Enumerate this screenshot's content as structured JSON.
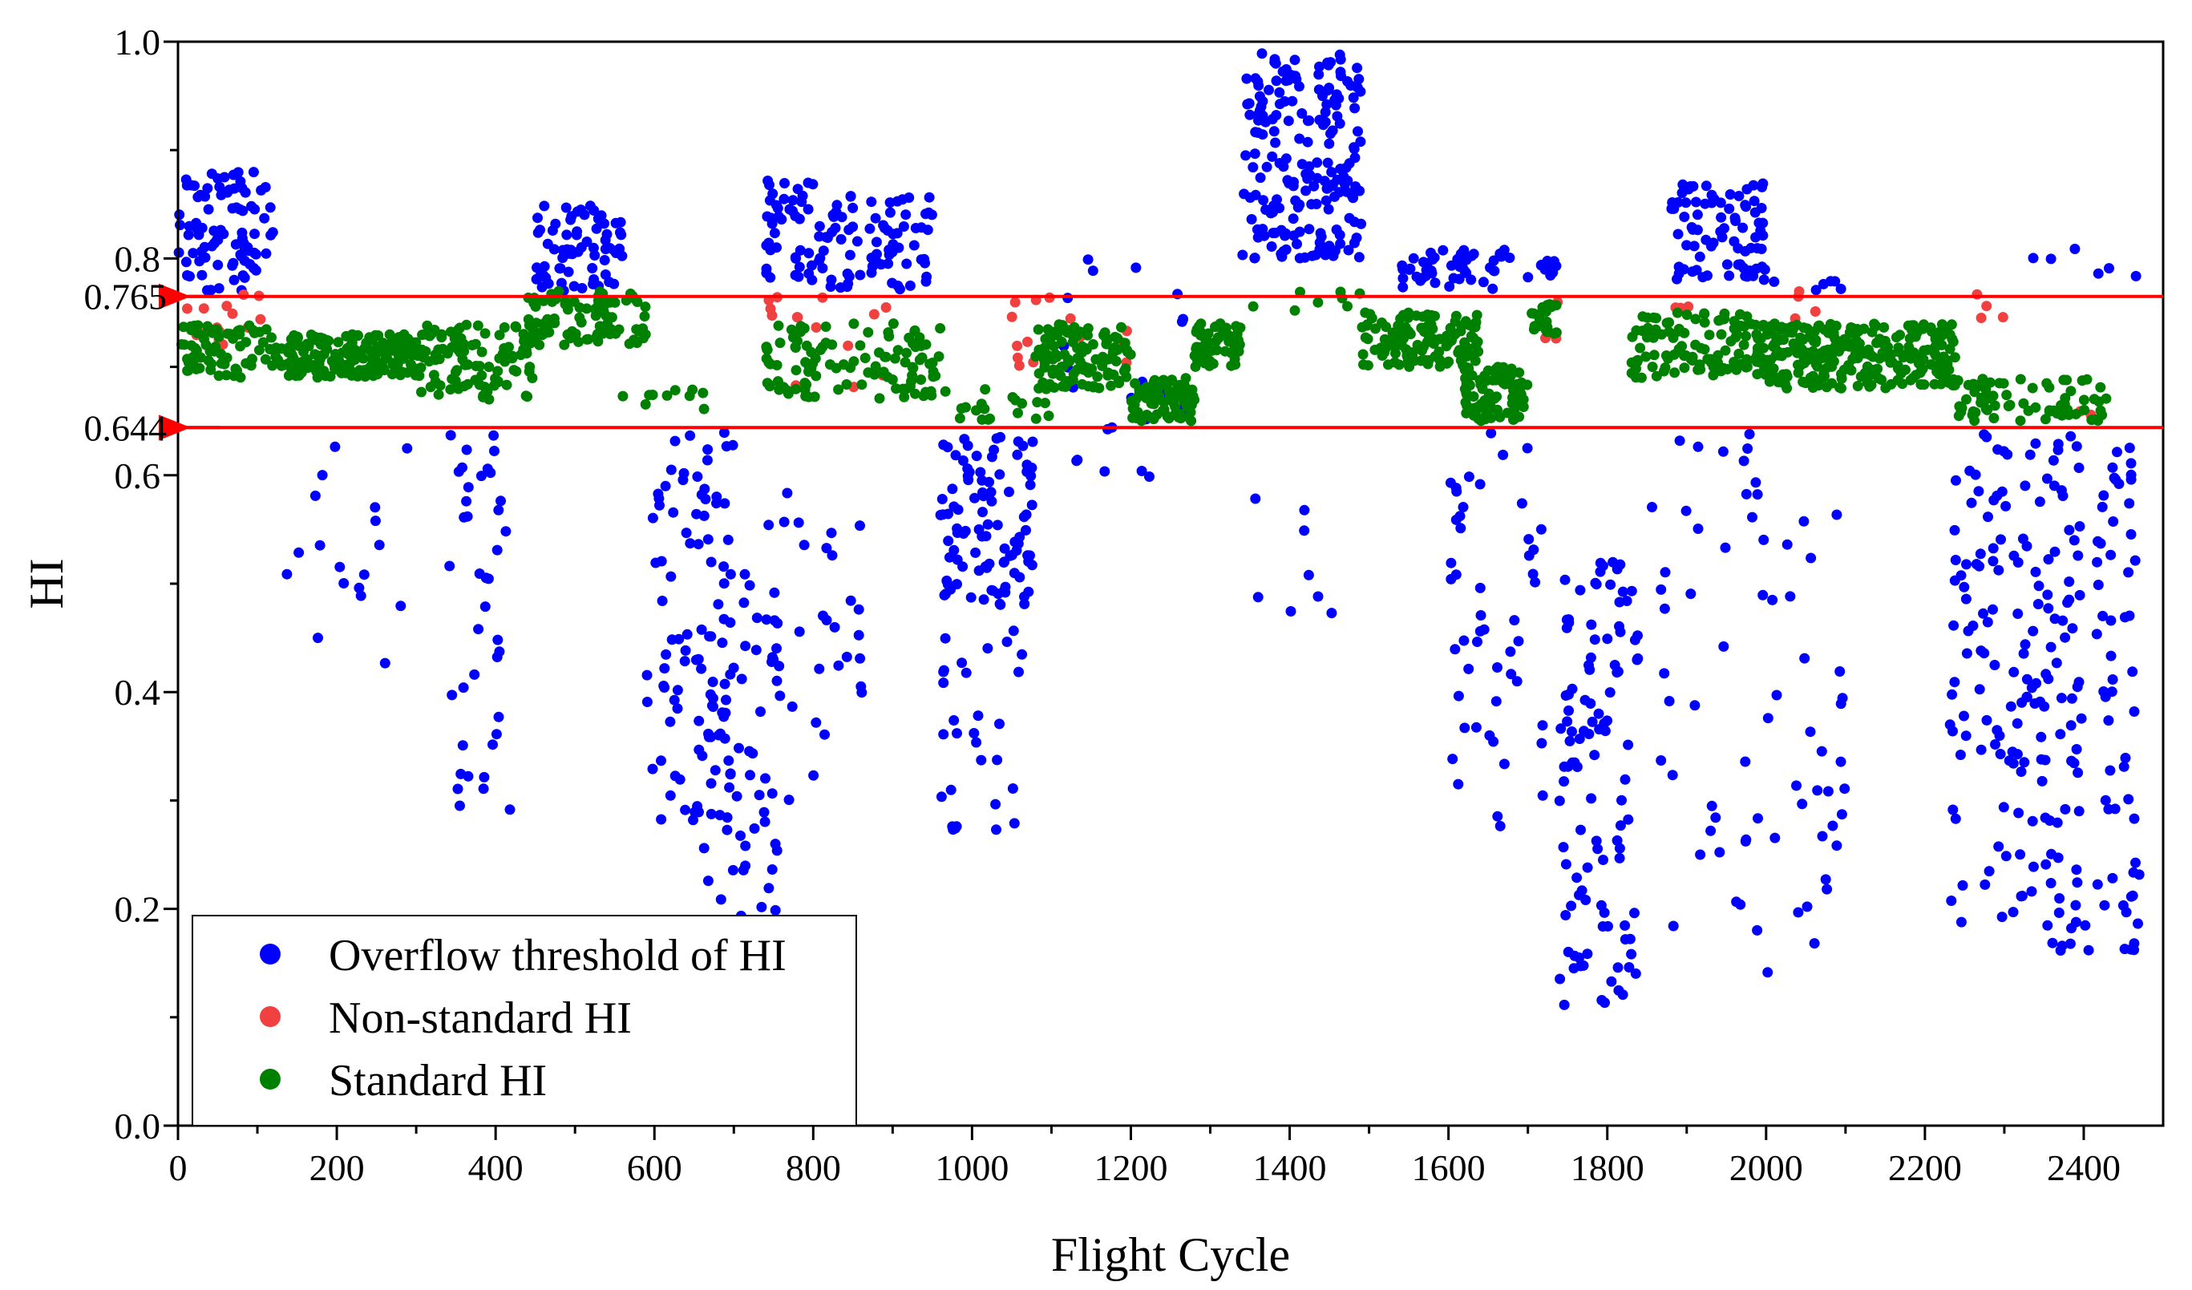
{
  "chart_data": {
    "type": "scatter",
    "title": "",
    "xlabel": "Flight Cycle",
    "ylabel": "HI",
    "xlim": [
      0,
      2500
    ],
    "ylim": [
      0,
      1.0
    ],
    "x_ticks": [
      "0",
      "200",
      "400",
      "600",
      "800",
      "1000",
      "1200",
      "1400",
      "1600",
      "1800",
      "2000",
      "2200",
      "2400"
    ],
    "y_ticks": [
      "0.0",
      "0.2",
      "0.4",
      "0.6",
      "0.8",
      "1.0"
    ],
    "threshold_labels": [
      "0.765",
      "0.644"
    ],
    "thresholds": [
      0.765,
      0.644
    ],
    "threshold_color": "#ff0000",
    "legend_position": "bottom-left",
    "series": [
      {
        "name": "Overflow threshold of HI",
        "color": "#0000ff",
        "clusters": [
          {
            "x0": 0,
            "x1": 120,
            "y0": 0.77,
            "y1": 0.88,
            "n": 90
          },
          {
            "x0": 130,
            "x1": 300,
            "y0": 0.42,
            "y1": 0.64,
            "n": 18
          },
          {
            "x0": 340,
            "x1": 420,
            "y0": 0.28,
            "y1": 0.64,
            "n": 40
          },
          {
            "x0": 450,
            "x1": 560,
            "y0": 0.77,
            "y1": 0.85,
            "n": 70
          },
          {
            "x0": 590,
            "x1": 700,
            "y0": 0.28,
            "y1": 0.64,
            "n": 90
          },
          {
            "x0": 660,
            "x1": 760,
            "y0": 0.18,
            "y1": 0.52,
            "n": 60
          },
          {
            "x0": 740,
            "x1": 820,
            "y0": 0.78,
            "y1": 0.88,
            "n": 50
          },
          {
            "x0": 820,
            "x1": 950,
            "y0": 0.77,
            "y1": 0.86,
            "n": 70
          },
          {
            "x0": 740,
            "x1": 870,
            "y0": 0.3,
            "y1": 0.6,
            "n": 30
          },
          {
            "x0": 960,
            "x1": 1080,
            "y0": 0.48,
            "y1": 0.64,
            "n": 100
          },
          {
            "x0": 960,
            "x1": 1070,
            "y0": 0.27,
            "y1": 0.46,
            "n": 30
          },
          {
            "x0": 1100,
            "x1": 1270,
            "y0": 0.58,
            "y1": 0.8,
            "n": 25
          },
          {
            "x0": 1340,
            "x1": 1490,
            "y0": 0.8,
            "y1": 0.99,
            "n": 200
          },
          {
            "x0": 1350,
            "x1": 1490,
            "y0": 0.47,
            "y1": 0.58,
            "n": 8
          },
          {
            "x0": 1540,
            "x1": 1680,
            "y0": 0.77,
            "y1": 0.81,
            "n": 50
          },
          {
            "x0": 1600,
            "x1": 1720,
            "y0": 0.27,
            "y1": 0.64,
            "n": 50
          },
          {
            "x0": 1700,
            "x1": 1740,
            "y0": 0.78,
            "y1": 0.8,
            "n": 10
          },
          {
            "x0": 1740,
            "x1": 1840,
            "y0": 0.11,
            "y1": 0.52,
            "n": 110
          },
          {
            "x0": 1880,
            "x1": 2000,
            "y0": 0.78,
            "y1": 0.87,
            "n": 80
          },
          {
            "x0": 1850,
            "x1": 2100,
            "y0": 0.14,
            "y1": 0.64,
            "n": 70
          },
          {
            "x0": 2000,
            "x1": 2100,
            "y0": 0.77,
            "y1": 0.78,
            "n": 6
          },
          {
            "x0": 2230,
            "x1": 2470,
            "y0": 0.16,
            "y1": 0.64,
            "n": 230
          },
          {
            "x0": 2270,
            "x1": 2470,
            "y0": 0.77,
            "y1": 0.81,
            "n": 6
          }
        ]
      },
      {
        "name": "Non-standard HI",
        "color": "#f04040",
        "clusters": [
          {
            "x0": 0,
            "x1": 110,
            "y0": 0.72,
            "y1": 0.77,
            "n": 14
          },
          {
            "x0": 740,
            "x1": 900,
            "y0": 0.67,
            "y1": 0.77,
            "n": 14
          },
          {
            "x0": 1050,
            "x1": 1210,
            "y0": 0.7,
            "y1": 0.77,
            "n": 14
          },
          {
            "x0": 1720,
            "x1": 1740,
            "y0": 0.72,
            "y1": 0.76,
            "n": 3
          },
          {
            "x0": 1880,
            "x1": 1910,
            "y0": 0.75,
            "y1": 0.77,
            "n": 3
          },
          {
            "x0": 2030,
            "x1": 2070,
            "y0": 0.74,
            "y1": 0.77,
            "n": 4
          },
          {
            "x0": 2230,
            "x1": 2300,
            "y0": 0.74,
            "y1": 0.77,
            "n": 4
          },
          {
            "x0": 2390,
            "x1": 2420,
            "y0": 0.64,
            "y1": 0.66,
            "n": 2
          }
        ]
      },
      {
        "name": "Standard HI",
        "color": "#008000",
        "clusters": [
          {
            "x0": 0,
            "x1": 130,
            "y0": 0.69,
            "y1": 0.74,
            "n": 70
          },
          {
            "x0": 130,
            "x1": 300,
            "y0": 0.69,
            "y1": 0.73,
            "n": 180
          },
          {
            "x0": 300,
            "x1": 450,
            "y0": 0.67,
            "y1": 0.74,
            "n": 100
          },
          {
            "x0": 440,
            "x1": 590,
            "y0": 0.72,
            "y1": 0.77,
            "n": 90
          },
          {
            "x0": 560,
            "x1": 670,
            "y0": 0.66,
            "y1": 0.68,
            "n": 10
          },
          {
            "x0": 740,
            "x1": 960,
            "y0": 0.67,
            "y1": 0.74,
            "n": 110
          },
          {
            "x0": 960,
            "x1": 1100,
            "y0": 0.65,
            "y1": 0.68,
            "n": 20
          },
          {
            "x0": 1080,
            "x1": 1200,
            "y0": 0.68,
            "y1": 0.74,
            "n": 110
          },
          {
            "x0": 1200,
            "x1": 1280,
            "y0": 0.65,
            "y1": 0.69,
            "n": 80
          },
          {
            "x0": 1280,
            "x1": 1340,
            "y0": 0.7,
            "y1": 0.74,
            "n": 60
          },
          {
            "x0": 1350,
            "x1": 1490,
            "y0": 0.75,
            "y1": 0.77,
            "n": 8
          },
          {
            "x0": 1490,
            "x1": 1640,
            "y0": 0.7,
            "y1": 0.75,
            "n": 120
          },
          {
            "x0": 1620,
            "x1": 1700,
            "y0": 0.65,
            "y1": 0.7,
            "n": 80
          },
          {
            "x0": 1700,
            "x1": 1740,
            "y0": 0.73,
            "y1": 0.76,
            "n": 20
          },
          {
            "x0": 1830,
            "x1": 2000,
            "y0": 0.69,
            "y1": 0.75,
            "n": 120
          },
          {
            "x0": 2000,
            "x1": 2240,
            "y0": 0.68,
            "y1": 0.74,
            "n": 260
          },
          {
            "x0": 2240,
            "x1": 2430,
            "y0": 0.65,
            "y1": 0.69,
            "n": 70
          }
        ]
      }
    ]
  }
}
